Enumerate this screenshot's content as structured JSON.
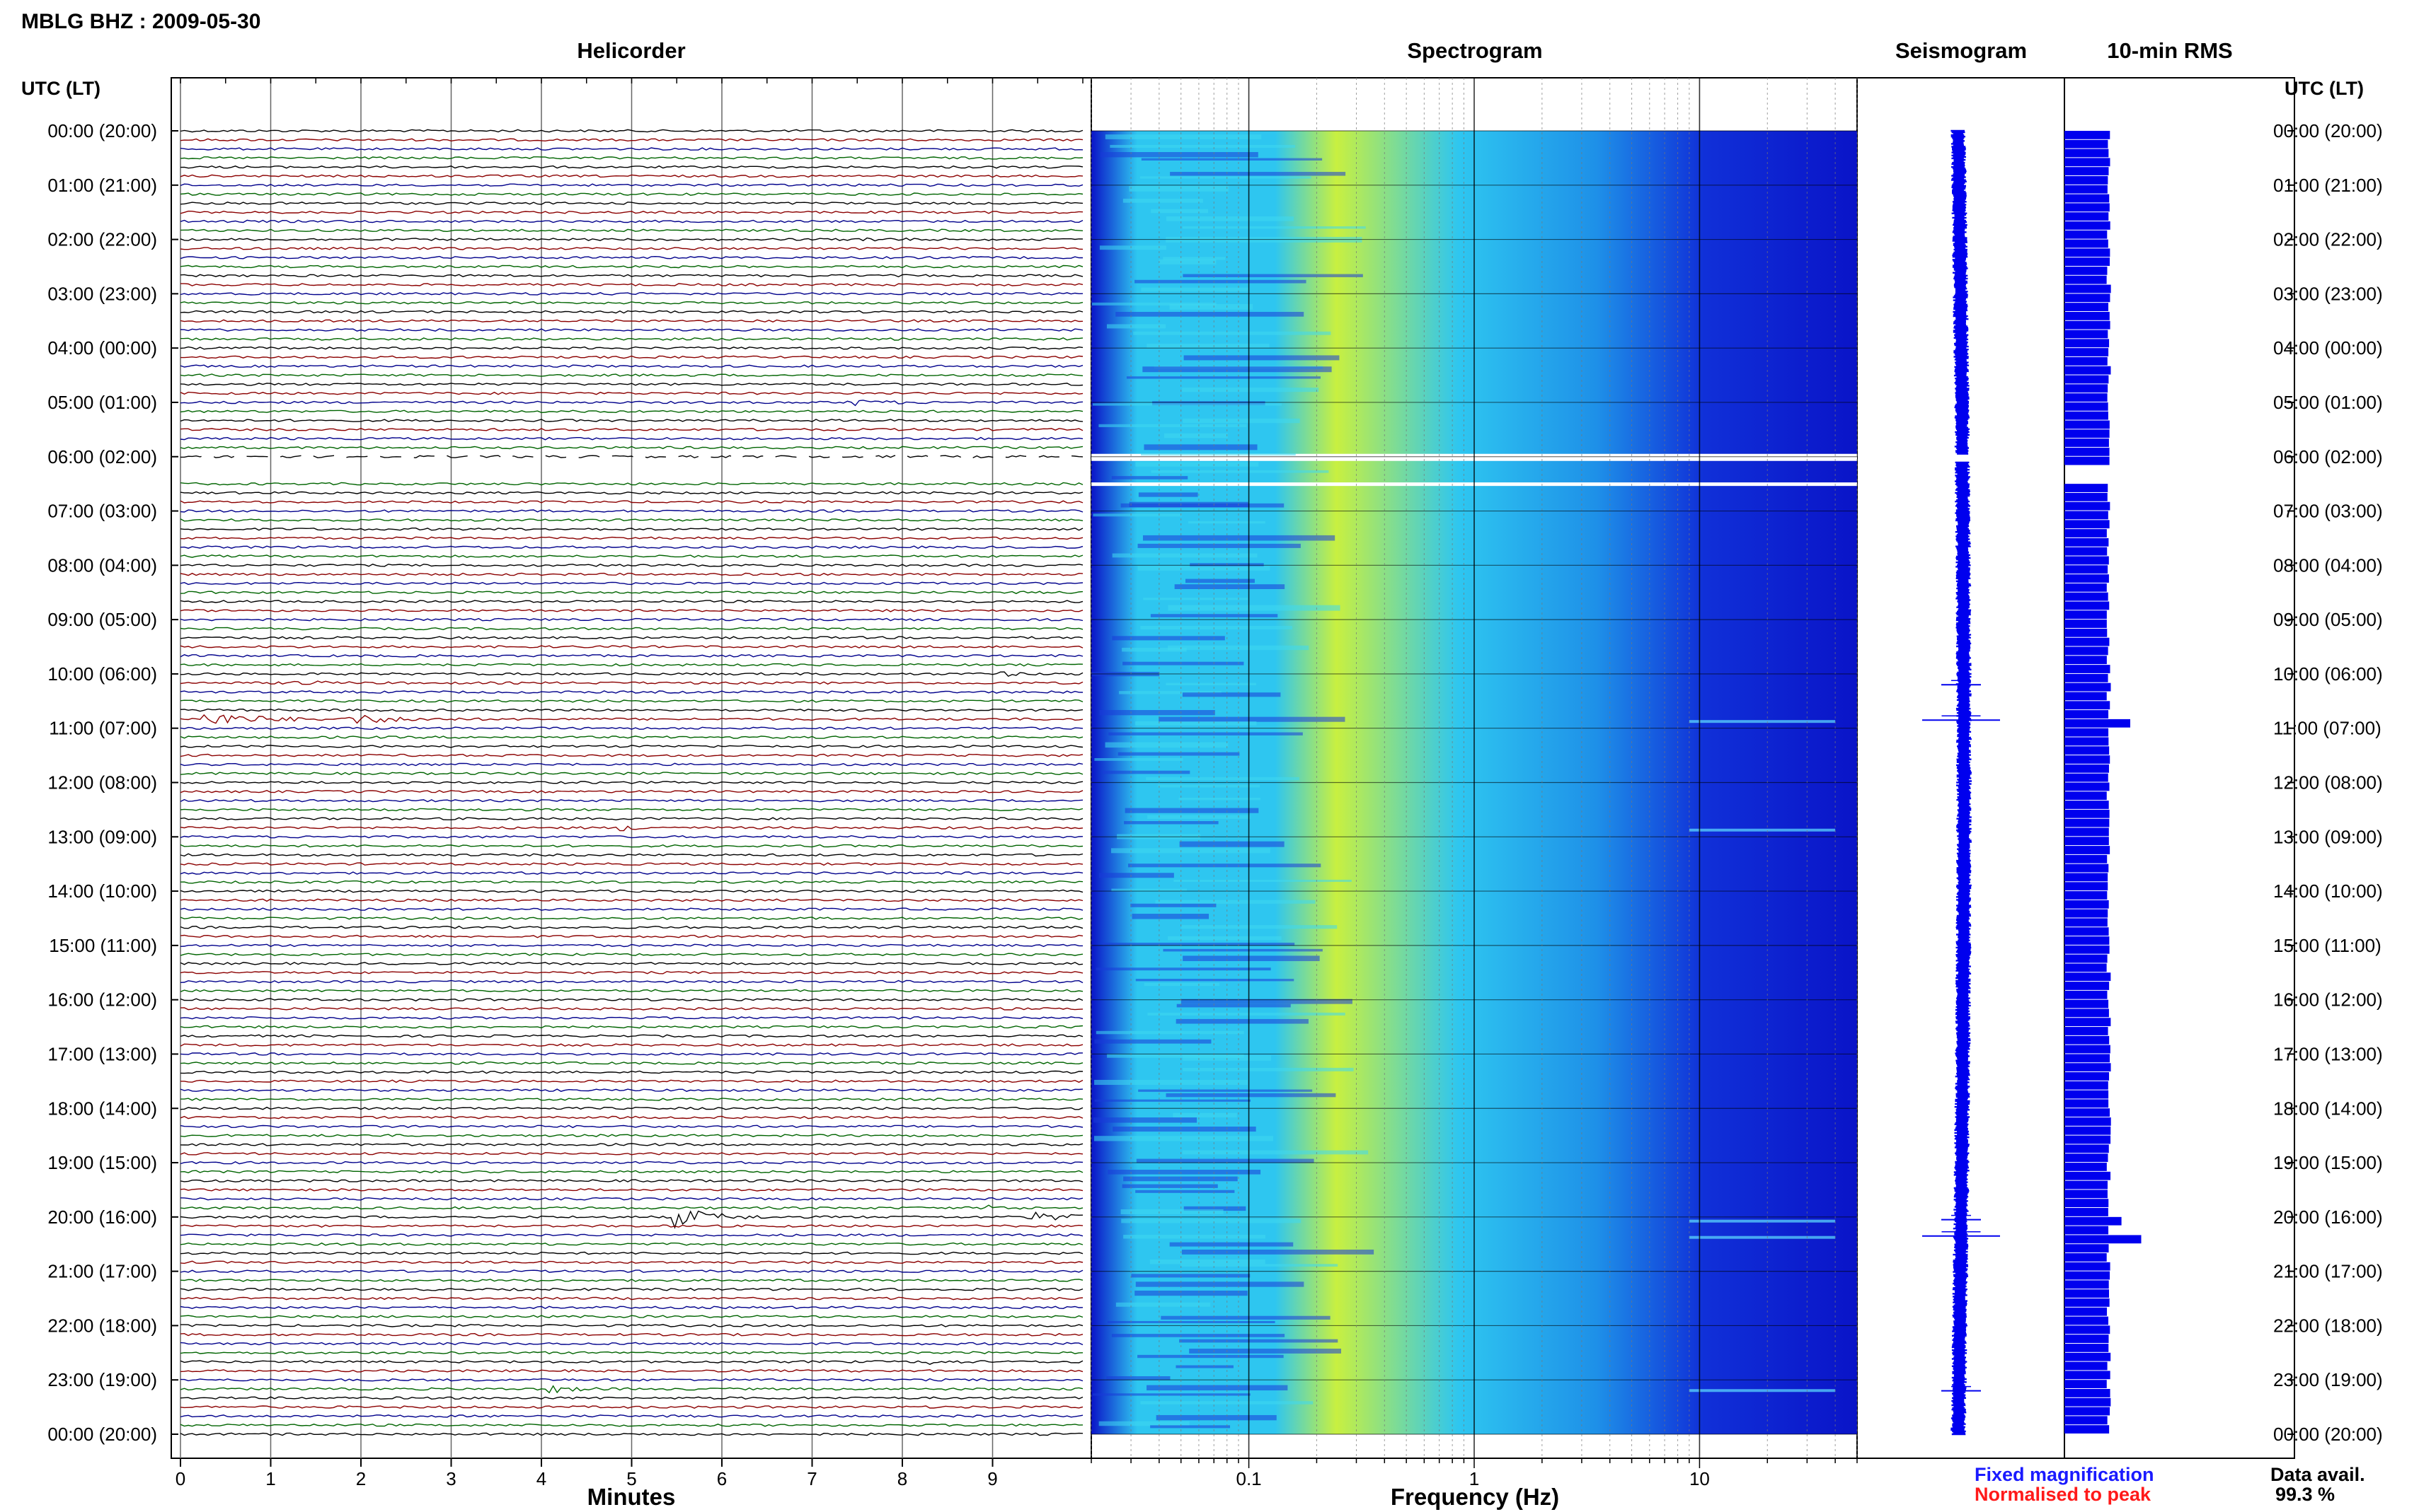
{
  "header": {
    "station_title": "MBLG BHZ : 2009-05-30",
    "utc_label_left": "UTC (LT)",
    "utc_label_right": "UTC (LT)"
  },
  "panels": {
    "helicorder": "Helicorder",
    "spectrogram": "Spectrogram",
    "seismogram": "Seismogram",
    "rms": "10-min RMS"
  },
  "axes": {
    "helicorder_xlabel": "Minutes",
    "spectrogram_xlabel": "Frequency (Hz)"
  },
  "legend": {
    "fixed": "Fixed magnification",
    "normalised": "Normalised to peak",
    "fixed_color": "#1a1aff",
    "normalised_color": "#ff1a1a"
  },
  "availability": {
    "label": "Data avail.",
    "value": "99.3 %"
  },
  "colors": {
    "trace_cycle": [
      "#000000",
      "#8b0000",
      "#00008b",
      "#006400"
    ],
    "rms_bar": "#0000ee",
    "seismogram": "#0000ee",
    "spec_low": "#0a14c8",
    "spec_mid": "#2ec6f0",
    "spec_high": "#c8f040"
  },
  "chart_data": [
    {
      "type": "line",
      "title": "Helicorder",
      "xlabel": "Minutes",
      "xlim": [
        0,
        10
      ],
      "x_ticks": [
        "0",
        "1",
        "2",
        "3",
        "4",
        "5",
        "6",
        "7",
        "8",
        "9"
      ],
      "y_tick_labels": [
        "00:00 (20:00)",
        "01:00 (21:00)",
        "02:00 (22:00)",
        "03:00 (23:00)",
        "04:00 (00:00)",
        "05:00 (01:00)",
        "06:00 (02:00)",
        "07:00 (03:00)",
        "08:00 (04:00)",
        "09:00 (05:00)",
        "10:00 (06:00)",
        "11:00 (07:00)",
        "12:00 (08:00)",
        "13:00 (09:00)",
        "14:00 (10:00)",
        "15:00 (11:00)",
        "16:00 (12:00)",
        "17:00 (13:00)",
        "18:00 (14:00)",
        "19:00 (15:00)",
        "20:00 (16:00)",
        "21:00 (17:00)",
        "22:00 (18:00)",
        "23:00 (19:00)",
        "00:00 (20:00)"
      ],
      "rows_per_hour": 6,
      "gap_hours": [
        6.0,
        6.5
      ]
    },
    {
      "type": "heatmap",
      "title": "Spectrogram",
      "xlabel": "Frequency (Hz)",
      "x_scale": "log",
      "xlim": [
        0.02,
        50
      ],
      "x_ticks": [
        "0.1",
        "1",
        "10"
      ],
      "peak_band_hz": [
        0.15,
        0.6
      ]
    },
    {
      "type": "line",
      "title": "Seismogram",
      "events_hours": [
        10.2,
        10.85,
        20.05,
        20.35,
        23.2
      ]
    },
    {
      "type": "bar",
      "title": "10-min RMS",
      "typical_value": 1.0,
      "peaks": [
        {
          "hour": 10.85,
          "value": 1.5
        },
        {
          "hour": 20.0,
          "value": 1.3
        },
        {
          "hour": 20.35,
          "value": 1.75
        }
      ]
    }
  ]
}
